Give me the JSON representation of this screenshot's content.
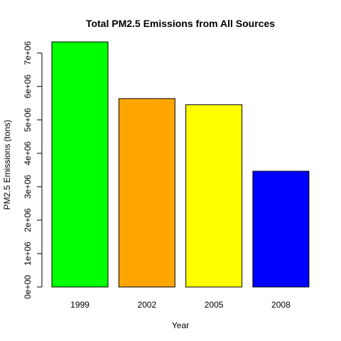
{
  "chart_data": {
    "type": "bar",
    "title": "Total PM2.5 Emissions from All Sources",
    "xlabel": "Year",
    "ylabel": "PM2.5 Emissions (tons)",
    "categories": [
      "1999",
      "2002",
      "2005",
      "2008"
    ],
    "values": [
      7332967,
      5635780,
      5454703,
      3464206
    ],
    "colors": [
      "#00ff00",
      "#ffa500",
      "#ffff00",
      "#0000ff"
    ],
    "ylim": [
      0,
      7332967
    ],
    "yticks": [
      0,
      1000000,
      2000000,
      3000000,
      4000000,
      5000000,
      6000000,
      7000000
    ],
    "ytick_labels": [
      "0e+00",
      "1e+06",
      "2e+06",
      "3e+06",
      "4e+06",
      "5e+06",
      "6e+06",
      "7e+06"
    ],
    "grid": false,
    "legend": "none"
  }
}
